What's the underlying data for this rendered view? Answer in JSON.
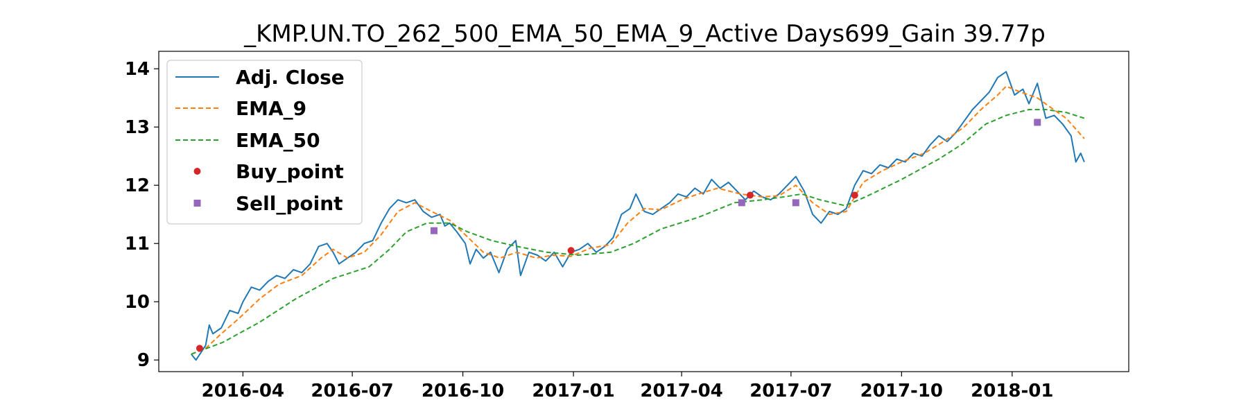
{
  "chart_data": {
    "type": "line",
    "title": "_KMP.UN.TO_262_500_EMA_50_EMA_9_Active Days699_Gain  39.77p",
    "xlabel": "",
    "ylabel": "",
    "x_ticks": [
      "2016-04",
      "2016-07",
      "2016-10",
      "2017-01",
      "2017-04",
      "2017-07",
      "2017-10",
      "2018-01"
    ],
    "y_ticks": [
      9,
      10,
      11,
      12,
      13,
      14
    ],
    "ylim": [
      8.8,
      14.3
    ],
    "xlim": [
      "2016-01-22",
      "2018-04-08"
    ],
    "grid": false,
    "legend_position": "top-left",
    "colors": {
      "adj_close": "#1f77b4",
      "ema_9": "#ff7f0e",
      "ema_50": "#2ca02c",
      "buy_point": "#d62728",
      "sell_point": "#9467bd"
    },
    "series": [
      {
        "name": "Adj. Close",
        "style": "solid",
        "points": [
          [
            "2016-02-18",
            9.1
          ],
          [
            "2016-02-22",
            9.0
          ],
          [
            "2016-03-01",
            9.25
          ],
          [
            "2016-03-04",
            9.6
          ],
          [
            "2016-03-07",
            9.45
          ],
          [
            "2016-03-14",
            9.55
          ],
          [
            "2016-03-21",
            9.85
          ],
          [
            "2016-03-28",
            9.8
          ],
          [
            "2016-04-01",
            10.0
          ],
          [
            "2016-04-08",
            10.25
          ],
          [
            "2016-04-15",
            10.2
          ],
          [
            "2016-04-22",
            10.35
          ],
          [
            "2016-04-29",
            10.45
          ],
          [
            "2016-05-06",
            10.4
          ],
          [
            "2016-05-13",
            10.55
          ],
          [
            "2016-05-20",
            10.5
          ],
          [
            "2016-05-27",
            10.65
          ],
          [
            "2016-06-03",
            10.95
          ],
          [
            "2016-06-10",
            11.0
          ],
          [
            "2016-06-15",
            10.85
          ],
          [
            "2016-06-20",
            10.65
          ],
          [
            "2016-06-27",
            10.75
          ],
          [
            "2016-07-04",
            10.85
          ],
          [
            "2016-07-11",
            11.0
          ],
          [
            "2016-07-18",
            11.05
          ],
          [
            "2016-07-25",
            11.35
          ],
          [
            "2016-08-01",
            11.6
          ],
          [
            "2016-08-08",
            11.75
          ],
          [
            "2016-08-15",
            11.7
          ],
          [
            "2016-08-22",
            11.75
          ],
          [
            "2016-08-29",
            11.55
          ],
          [
            "2016-09-05",
            11.45
          ],
          [
            "2016-09-12",
            11.5
          ],
          [
            "2016-09-16",
            11.3
          ],
          [
            "2016-09-20",
            11.35
          ],
          [
            "2016-09-26",
            11.2
          ],
          [
            "2016-10-03",
            11.0
          ],
          [
            "2016-10-07",
            10.65
          ],
          [
            "2016-10-12",
            10.9
          ],
          [
            "2016-10-18",
            10.75
          ],
          [
            "2016-10-24",
            10.85
          ],
          [
            "2016-10-31",
            10.5
          ],
          [
            "2016-11-07",
            10.9
          ],
          [
            "2016-11-14",
            11.05
          ],
          [
            "2016-11-18",
            10.45
          ],
          [
            "2016-11-25",
            10.85
          ],
          [
            "2016-12-02",
            10.8
          ],
          [
            "2016-12-09",
            10.7
          ],
          [
            "2016-12-16",
            10.85
          ],
          [
            "2016-12-23",
            10.6
          ],
          [
            "2016-12-30",
            10.85
          ],
          [
            "2017-01-06",
            10.9
          ],
          [
            "2017-01-13",
            11.0
          ],
          [
            "2017-01-20",
            10.85
          ],
          [
            "2017-01-27",
            10.95
          ],
          [
            "2017-02-03",
            11.1
          ],
          [
            "2017-02-10",
            11.5
          ],
          [
            "2017-02-17",
            11.6
          ],
          [
            "2017-02-22",
            11.85
          ],
          [
            "2017-03-01",
            11.55
          ],
          [
            "2017-03-08",
            11.5
          ],
          [
            "2017-03-15",
            11.6
          ],
          [
            "2017-03-22",
            11.7
          ],
          [
            "2017-03-29",
            11.85
          ],
          [
            "2017-04-05",
            11.8
          ],
          [
            "2017-04-12",
            11.95
          ],
          [
            "2017-04-19",
            11.85
          ],
          [
            "2017-04-26",
            12.1
          ],
          [
            "2017-05-03",
            11.95
          ],
          [
            "2017-05-10",
            12.05
          ],
          [
            "2017-05-17",
            11.9
          ],
          [
            "2017-05-24",
            11.75
          ],
          [
            "2017-05-31",
            11.9
          ],
          [
            "2017-06-07",
            11.8
          ],
          [
            "2017-06-14",
            11.75
          ],
          [
            "2017-06-21",
            11.85
          ],
          [
            "2017-06-28",
            12.0
          ],
          [
            "2017-07-05",
            12.15
          ],
          [
            "2017-07-12",
            11.9
          ],
          [
            "2017-07-19",
            11.5
          ],
          [
            "2017-07-26",
            11.35
          ],
          [
            "2017-08-02",
            11.55
          ],
          [
            "2017-08-09",
            11.5
          ],
          [
            "2017-08-16",
            11.6
          ],
          [
            "2017-08-23",
            12.0
          ],
          [
            "2017-08-30",
            12.25
          ],
          [
            "2017-09-06",
            12.2
          ],
          [
            "2017-09-13",
            12.35
          ],
          [
            "2017-09-20",
            12.3
          ],
          [
            "2017-09-27",
            12.45
          ],
          [
            "2017-10-04",
            12.4
          ],
          [
            "2017-10-11",
            12.55
          ],
          [
            "2017-10-18",
            12.5
          ],
          [
            "2017-10-25",
            12.7
          ],
          [
            "2017-11-01",
            12.85
          ],
          [
            "2017-11-08",
            12.75
          ],
          [
            "2017-11-15",
            12.9
          ],
          [
            "2017-11-22",
            13.1
          ],
          [
            "2017-11-29",
            13.3
          ],
          [
            "2017-12-06",
            13.45
          ],
          [
            "2017-12-13",
            13.6
          ],
          [
            "2017-12-20",
            13.85
          ],
          [
            "2017-12-27",
            13.95
          ],
          [
            "2018-01-03",
            13.55
          ],
          [
            "2018-01-10",
            13.65
          ],
          [
            "2018-01-15",
            13.4
          ],
          [
            "2018-01-22",
            13.75
          ],
          [
            "2018-01-29",
            13.15
          ],
          [
            "2018-02-05",
            13.2
          ],
          [
            "2018-02-12",
            13.05
          ],
          [
            "2018-02-19",
            12.85
          ],
          [
            "2018-02-23",
            12.4
          ],
          [
            "2018-02-27",
            12.55
          ],
          [
            "2018-03-02",
            12.4
          ]
        ]
      },
      {
        "name": "EMA_9",
        "style": "dashed",
        "points": [
          [
            "2016-02-18",
            9.1
          ],
          [
            "2016-03-01",
            9.2
          ],
          [
            "2016-03-14",
            9.45
          ],
          [
            "2016-03-28",
            9.7
          ],
          [
            "2016-04-15",
            10.05
          ],
          [
            "2016-05-01",
            10.3
          ],
          [
            "2016-05-20",
            10.45
          ],
          [
            "2016-06-05",
            10.75
          ],
          [
            "2016-06-15",
            10.9
          ],
          [
            "2016-06-27",
            10.75
          ],
          [
            "2016-07-11",
            10.85
          ],
          [
            "2016-07-25",
            11.15
          ],
          [
            "2016-08-08",
            11.55
          ],
          [
            "2016-08-22",
            11.7
          ],
          [
            "2016-09-05",
            11.55
          ],
          [
            "2016-09-20",
            11.4
          ],
          [
            "2016-10-03",
            11.15
          ],
          [
            "2016-10-18",
            10.85
          ],
          [
            "2016-11-01",
            10.75
          ],
          [
            "2016-11-15",
            10.85
          ],
          [
            "2016-12-01",
            10.75
          ],
          [
            "2016-12-15",
            10.8
          ],
          [
            "2016-12-30",
            10.78
          ],
          [
            "2017-01-15",
            10.92
          ],
          [
            "2017-02-01",
            10.98
          ],
          [
            "2017-02-15",
            11.35
          ],
          [
            "2017-03-01",
            11.6
          ],
          [
            "2017-03-15",
            11.58
          ],
          [
            "2017-04-01",
            11.75
          ],
          [
            "2017-04-15",
            11.85
          ],
          [
            "2017-05-01",
            11.95
          ],
          [
            "2017-05-20",
            11.85
          ],
          [
            "2017-06-07",
            11.8
          ],
          [
            "2017-06-21",
            11.82
          ],
          [
            "2017-07-05",
            12.0
          ],
          [
            "2017-07-19",
            11.7
          ],
          [
            "2017-08-02",
            11.5
          ],
          [
            "2017-08-16",
            11.55
          ],
          [
            "2017-08-30",
            12.05
          ],
          [
            "2017-09-15",
            12.25
          ],
          [
            "2017-10-01",
            12.4
          ],
          [
            "2017-10-20",
            12.55
          ],
          [
            "2017-11-05",
            12.75
          ],
          [
            "2017-11-22",
            13.0
          ],
          [
            "2017-12-06",
            13.3
          ],
          [
            "2017-12-20",
            13.55
          ],
          [
            "2017-12-27",
            13.7
          ],
          [
            "2018-01-08",
            13.6
          ],
          [
            "2018-01-22",
            13.5
          ],
          [
            "2018-02-01",
            13.35
          ],
          [
            "2018-02-15",
            13.15
          ],
          [
            "2018-03-02",
            12.8
          ]
        ]
      },
      {
        "name": "EMA_50",
        "style": "dashed",
        "points": [
          [
            "2016-02-18",
            9.1
          ],
          [
            "2016-03-15",
            9.3
          ],
          [
            "2016-04-15",
            9.65
          ],
          [
            "2016-05-15",
            10.05
          ],
          [
            "2016-06-15",
            10.4
          ],
          [
            "2016-07-15",
            10.6
          ],
          [
            "2016-08-01",
            10.9
          ],
          [
            "2016-08-15",
            11.2
          ],
          [
            "2016-09-01",
            11.35
          ],
          [
            "2016-09-20",
            11.35
          ],
          [
            "2016-10-05",
            11.2
          ],
          [
            "2016-10-25",
            11.05
          ],
          [
            "2016-11-15",
            10.95
          ],
          [
            "2016-12-10",
            10.85
          ],
          [
            "2017-01-05",
            10.8
          ],
          [
            "2017-02-01",
            10.85
          ],
          [
            "2017-02-20",
            11.0
          ],
          [
            "2017-03-15",
            11.25
          ],
          [
            "2017-04-15",
            11.45
          ],
          [
            "2017-05-15",
            11.7
          ],
          [
            "2017-06-07",
            11.75
          ],
          [
            "2017-06-25",
            11.8
          ],
          [
            "2017-07-10",
            11.85
          ],
          [
            "2017-07-25",
            11.75
          ],
          [
            "2017-08-15",
            11.65
          ],
          [
            "2017-09-01",
            11.8
          ],
          [
            "2017-10-01",
            12.1
          ],
          [
            "2017-11-01",
            12.45
          ],
          [
            "2017-11-20",
            12.7
          ],
          [
            "2017-12-10",
            13.05
          ],
          [
            "2017-12-27",
            13.2
          ],
          [
            "2018-01-15",
            13.3
          ],
          [
            "2018-01-29",
            13.3
          ],
          [
            "2018-02-15",
            13.25
          ],
          [
            "2018-03-02",
            13.15
          ]
        ]
      }
    ],
    "buy_points": {
      "name": "Buy_point",
      "points": [
        [
          "2016-02-25",
          9.2
        ],
        [
          "2016-12-30",
          10.88
        ],
        [
          "2017-05-28",
          11.83
        ],
        [
          "2017-08-23",
          11.83
        ]
      ]
    },
    "sell_points": {
      "name": "Sell_point",
      "points": [
        [
          "2016-09-07",
          11.22
        ],
        [
          "2017-05-21",
          11.7
        ],
        [
          "2017-07-05",
          11.7
        ],
        [
          "2018-01-22",
          13.08
        ]
      ]
    }
  }
}
